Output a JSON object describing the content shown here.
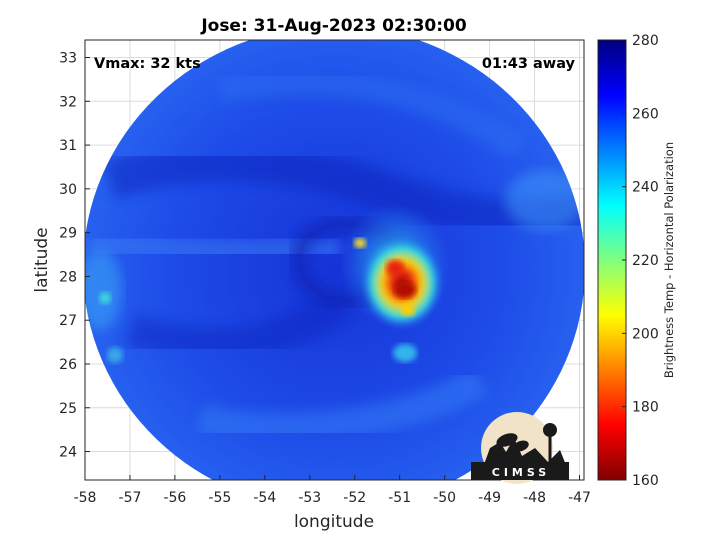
{
  "title": "Jose: 31-Aug-2023 02:30:00",
  "annotations": {
    "vmax": "Vmax: 32 kts",
    "time_away": "01:43 away"
  },
  "map": {
    "xlabel": "longitude",
    "ylabel": "latitude",
    "lon_ticks": [
      "-58",
      "-57",
      "-56",
      "-55",
      "-54",
      "-53",
      "-52",
      "-51",
      "-50",
      "-49",
      "-48",
      "-47"
    ],
    "lat_ticks": [
      "24",
      "25",
      "26",
      "27",
      "28",
      "29",
      "30",
      "31",
      "32",
      "33"
    ],
    "lon_range": [
      -58,
      -46.9
    ],
    "lat_range": [
      23.35,
      33.4
    ],
    "center": {
      "lon": -50.8,
      "lat": 27.6
    }
  },
  "colorbar": {
    "label": "Brightness Temp - Horizontal Polarization",
    "ticks": [
      "280",
      "260",
      "240",
      "220",
      "200",
      "180",
      "160"
    ],
    "range": [
      160,
      280
    ],
    "colormap": "jet"
  },
  "logo": {
    "text": "CIMSS"
  },
  "colors": {
    "background_swath": "#1f4fe8",
    "cold_ring": "#0f2fc8",
    "core": "#e52010"
  }
}
